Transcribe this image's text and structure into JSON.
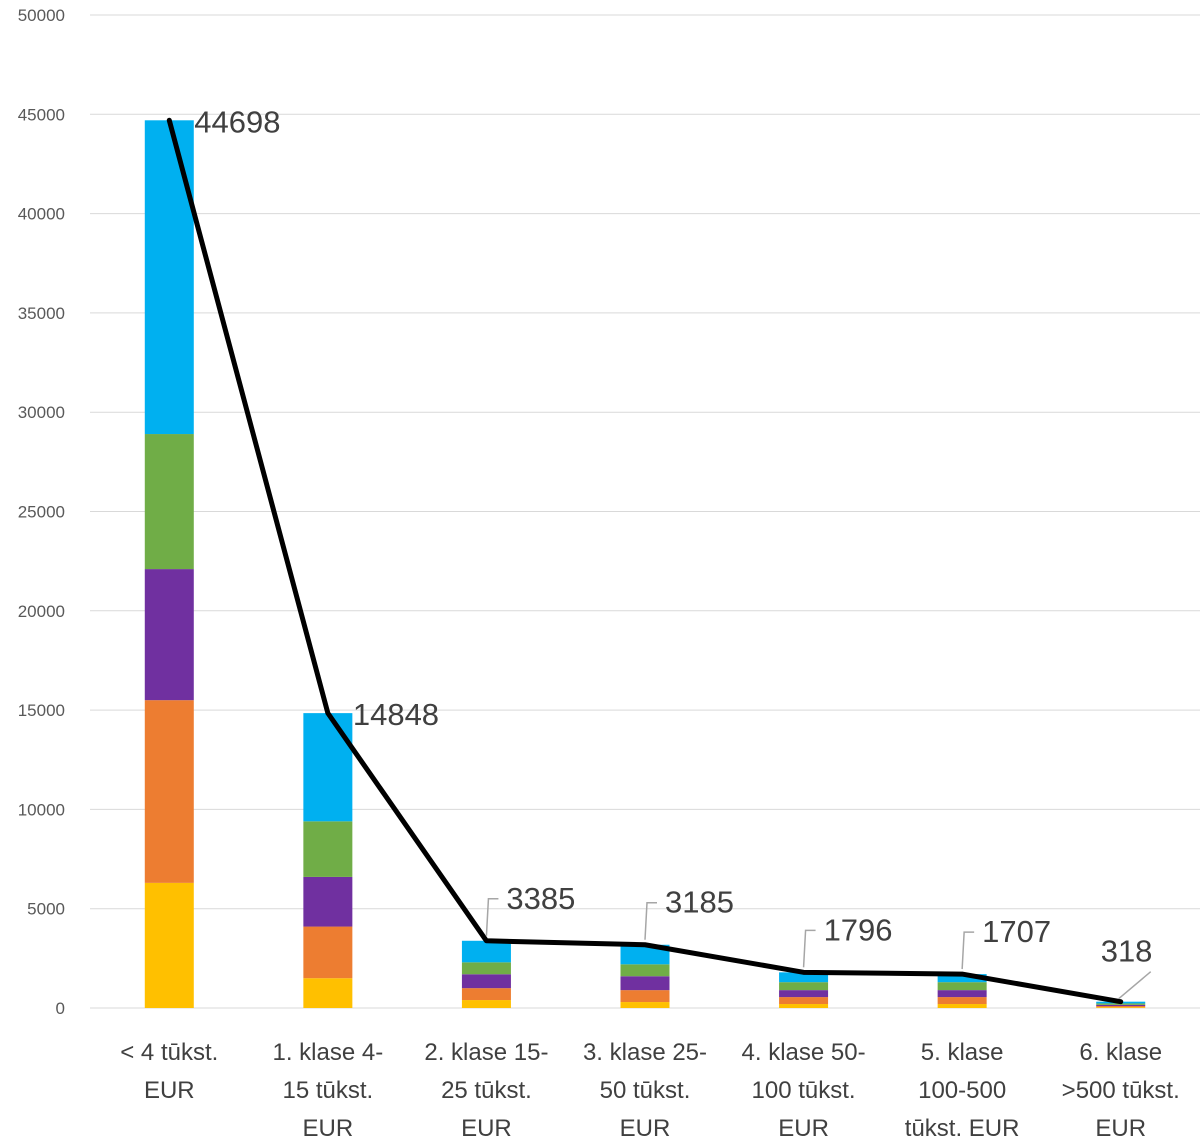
{
  "chart_data": {
    "type": "bar",
    "stacked": true,
    "ylim": [
      0,
      50000
    ],
    "yticks": [
      0,
      5000,
      10000,
      15000,
      20000,
      25000,
      30000,
      35000,
      40000,
      45000,
      50000
    ],
    "grid": true,
    "categories": [
      [
        "< 4 tūkst.",
        "EUR"
      ],
      [
        "1. klase 4-",
        "15 tūkst.",
        "EUR"
      ],
      [
        "2. klase 15-",
        "25 tūkst.",
        "EUR"
      ],
      [
        "3. klase 25-",
        "50 tūkst.",
        "EUR"
      ],
      [
        "4. klase 50-",
        "100 tūkst.",
        "EUR"
      ],
      [
        "5. klase",
        "100-500",
        "tūkst.  EUR"
      ],
      [
        "6. klase",
        ">500 tūkst.",
        "EUR"
      ]
    ],
    "series": [
      {
        "color": "#ffc000",
        "values": [
          6300,
          1500,
          400,
          300,
          200,
          200,
          40
        ]
      },
      {
        "color": "#ed7d31",
        "values": [
          9200,
          2600,
          600,
          600,
          350,
          350,
          60
        ]
      },
      {
        "color": "#7030a0",
        "values": [
          6600,
          2500,
          700,
          700,
          350,
          350,
          60
        ]
      },
      {
        "color": "#70ad47",
        "values": [
          6800,
          2800,
          600,
          600,
          400,
          400,
          70
        ]
      },
      {
        "color": "#00b0f0",
        "values": [
          15798,
          5448,
          1085,
          985,
          496,
          407,
          88
        ]
      }
    ],
    "line": {
      "color": "#000000",
      "values": [
        44698,
        14848,
        3385,
        3185,
        1796,
        1707,
        318
      ],
      "labels": [
        "44698",
        "14848",
        "3385",
        "3185",
        "1796",
        "1707",
        "318"
      ]
    }
  }
}
